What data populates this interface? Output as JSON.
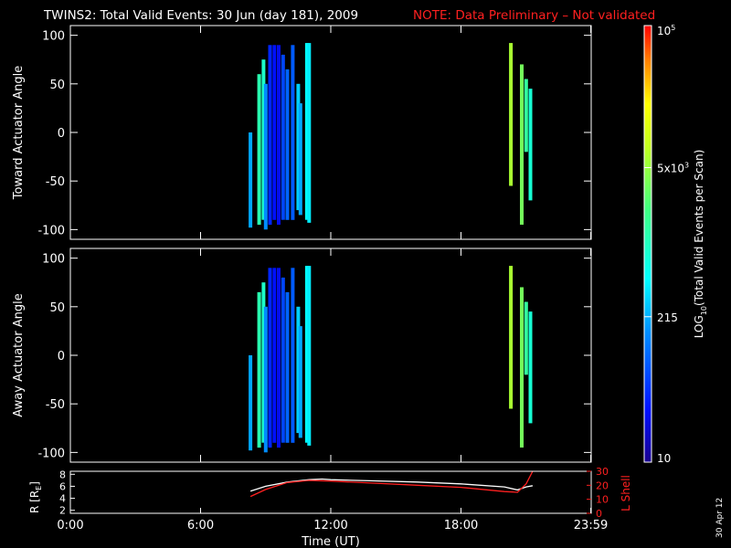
{
  "title": "TWINS2: Total Valid Events: 30 Jun (day 181), 2009",
  "note": "NOTE: Data Preliminary – Not validated",
  "colorbar": {
    "label": "LOG10(Total Valid Events per Scan)",
    "label_main": "LOG",
    "label_sub": "10",
    "label_rest": "(Total Valid Events per Scan)",
    "ticks": [
      {
        "value": 10,
        "label": "10"
      },
      {
        "value": 215,
        "label": "215"
      },
      {
        "value": 5000,
        "label": "5x10",
        "sup": "3"
      },
      {
        "value": 100000,
        "label": "10",
        "sup": "5"
      }
    ],
    "range": [
      10,
      100000
    ],
    "scale": "log"
  },
  "date_stamp": "30 Apr 12",
  "chart_data": [
    {
      "type": "heatmap",
      "ylabel": "Toward Actuator Angle",
      "xlim": [
        0,
        24
      ],
      "ylim": [
        -110,
        110
      ],
      "yticks": [
        {
          "value": 100,
          "label": "100"
        },
        {
          "value": 50,
          "label": "50"
        },
        {
          "value": 0,
          "label": "0"
        },
        {
          "value": -50,
          "label": "-50"
        },
        {
          "value": -100,
          "label": "-100"
        }
      ],
      "columns": [
        {
          "t": 8.3,
          "y0": -98,
          "y1": 0,
          "v": 200
        },
        {
          "t": 8.7,
          "y0": -95,
          "y1": 60,
          "v": 1200
        },
        {
          "t": 8.9,
          "y0": -90,
          "y1": 75,
          "v": 900
        },
        {
          "t": 9.0,
          "y0": -100,
          "y1": 50,
          "v": 150
        },
        {
          "t": 9.2,
          "y0": -95,
          "y1": 90,
          "v": 40
        },
        {
          "t": 9.4,
          "y0": -90,
          "y1": 90,
          "v": 30
        },
        {
          "t": 9.6,
          "y0": -95,
          "y1": 90,
          "v": 25
        },
        {
          "t": 9.8,
          "y0": -90,
          "y1": 80,
          "v": 60
        },
        {
          "t": 10.0,
          "y0": -90,
          "y1": 65,
          "v": 90
        },
        {
          "t": 10.25,
          "y0": -90,
          "y1": 90,
          "v": 80
        },
        {
          "t": 10.5,
          "y0": -80,
          "y1": 50,
          "v": 300
        },
        {
          "t": 10.6,
          "y0": -85,
          "y1": 30,
          "v": 200
        },
        {
          "t": 10.9,
          "y0": -90,
          "y1": 92,
          "v": 500
        },
        {
          "t": 11.0,
          "y0": -93,
          "y1": 92,
          "v": 400
        },
        {
          "t": 20.3,
          "y0": -55,
          "y1": 92,
          "v": 6000
        },
        {
          "t": 20.8,
          "y0": -95,
          "y1": 70,
          "v": 3500
        },
        {
          "t": 21.0,
          "y0": -20,
          "y1": 55,
          "v": 1500
        },
        {
          "t": 21.2,
          "y0": -70,
          "y1": 45,
          "v": 800
        }
      ]
    },
    {
      "type": "heatmap",
      "ylabel": "Away Actuator Angle",
      "xlim": [
        0,
        24
      ],
      "ylim": [
        -110,
        110
      ],
      "yticks": [
        {
          "value": 100,
          "label": "100"
        },
        {
          "value": 50,
          "label": "50"
        },
        {
          "value": 0,
          "label": "0"
        },
        {
          "value": -50,
          "label": "-50"
        },
        {
          "value": -100,
          "label": "-100"
        }
      ],
      "columns": [
        {
          "t": 8.3,
          "y0": -98,
          "y1": 0,
          "v": 200
        },
        {
          "t": 8.7,
          "y0": -95,
          "y1": 65,
          "v": 1200
        },
        {
          "t": 8.9,
          "y0": -90,
          "y1": 75,
          "v": 900
        },
        {
          "t": 9.0,
          "y0": -100,
          "y1": 50,
          "v": 150
        },
        {
          "t": 9.2,
          "y0": -95,
          "y1": 90,
          "v": 40
        },
        {
          "t": 9.4,
          "y0": -90,
          "y1": 90,
          "v": 30
        },
        {
          "t": 9.6,
          "y0": -95,
          "y1": 90,
          "v": 25
        },
        {
          "t": 9.8,
          "y0": -90,
          "y1": 80,
          "v": 60
        },
        {
          "t": 10.0,
          "y0": -90,
          "y1": 65,
          "v": 90
        },
        {
          "t": 10.25,
          "y0": -90,
          "y1": 90,
          "v": 80
        },
        {
          "t": 10.5,
          "y0": -80,
          "y1": 50,
          "v": 300
        },
        {
          "t": 10.6,
          "y0": -85,
          "y1": 30,
          "v": 200
        },
        {
          "t": 10.9,
          "y0": -90,
          "y1": 92,
          "v": 500
        },
        {
          "t": 11.0,
          "y0": -93,
          "y1": 92,
          "v": 400
        },
        {
          "t": 20.3,
          "y0": -55,
          "y1": 92,
          "v": 6000
        },
        {
          "t": 20.8,
          "y0": -95,
          "y1": 70,
          "v": 3500
        },
        {
          "t": 21.0,
          "y0": -20,
          "y1": 55,
          "v": 1500
        },
        {
          "t": 21.2,
          "y0": -70,
          "y1": 45,
          "v": 800
        }
      ]
    },
    {
      "type": "line",
      "ylabel": "R [R",
      "ylabel_sub": "E",
      "ylabel_close": "]",
      "ylabel_right": "L Shell",
      "xlabel": "Time (UT)",
      "xlim": [
        0,
        24
      ],
      "ylim": [
        1.5,
        8.5
      ],
      "ylim_right": [
        0,
        30
      ],
      "xticks": [
        {
          "value": 0,
          "label": "0:00"
        },
        {
          "value": 6,
          "label": "6:00"
        },
        {
          "value": 12,
          "label": "12:00"
        },
        {
          "value": 18,
          "label": "18:00"
        },
        {
          "value": 23.98,
          "label": "23:59"
        }
      ],
      "yticks": [
        {
          "value": 2,
          "label": "2"
        },
        {
          "value": 4,
          "label": "4"
        },
        {
          "value": 6,
          "label": "6"
        },
        {
          "value": 8,
          "label": "8"
        }
      ],
      "yticks_right": [
        {
          "value": 0,
          "label": "0"
        },
        {
          "value": 10,
          "label": "10"
        },
        {
          "value": 20,
          "label": "20"
        },
        {
          "value": 30,
          "label": "30"
        }
      ],
      "series": [
        {
          "color": "#ffffff",
          "axis": "left",
          "x": [
            8.3,
            9.0,
            10.0,
            11.0,
            11.6,
            12.0,
            14.0,
            16.0,
            18.0,
            20.0,
            20.6,
            21.0,
            21.3
          ],
          "y": [
            5.2,
            6.0,
            6.7,
            7.1,
            7.2,
            7.1,
            6.9,
            6.7,
            6.4,
            5.9,
            5.4,
            5.9,
            6.1
          ]
        },
        {
          "color": "#ff2020",
          "axis": "right",
          "x": [
            8.3,
            9.0,
            10.0,
            11.0,
            12.0,
            14.0,
            16.0,
            18.0,
            20.0,
            20.6,
            21.0,
            21.3
          ],
          "y": [
            12,
            17,
            22,
            23.5,
            23,
            21.5,
            20,
            18.5,
            15.5,
            15,
            21,
            30
          ]
        }
      ]
    }
  ]
}
